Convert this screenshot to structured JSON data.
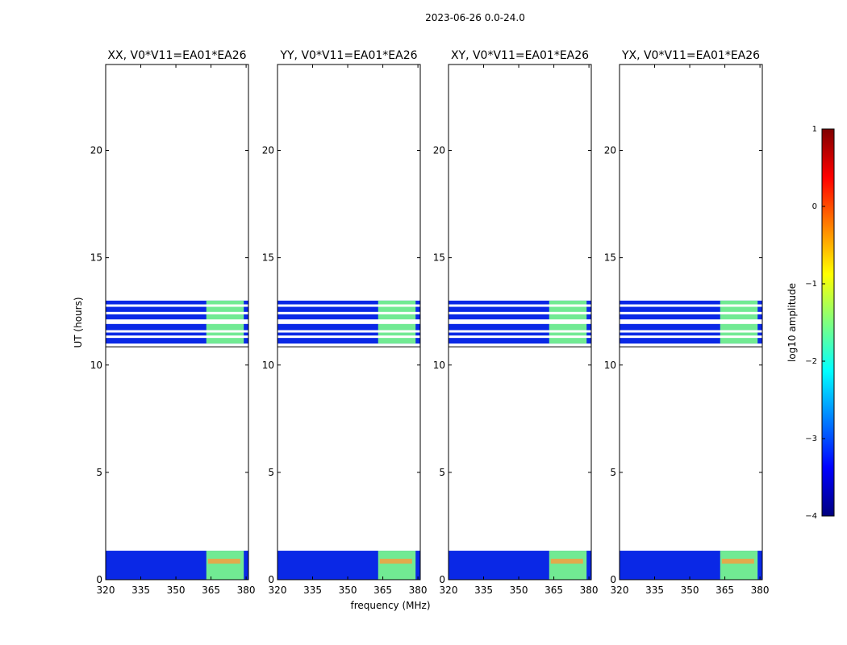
{
  "chart_data": {
    "type": "heatmap",
    "suptitle": "2023-06-26 0.0-24.0",
    "xlabel": "frequency (MHz)",
    "ylabel": "UT (hours)",
    "xlim": [
      320,
      381
    ],
    "ylim": [
      0,
      24
    ],
    "xticks": [
      320,
      335,
      350,
      365,
      380
    ],
    "xtick_labels": [
      "320",
      "335",
      "350",
      "365",
      "380"
    ],
    "yticks": [
      0,
      5,
      10,
      15,
      20
    ],
    "ytick_labels": [
      "0",
      "5",
      "10",
      "15",
      "20"
    ],
    "panels": [
      {
        "title": "XX, V0*V11=EA01*EA26"
      },
      {
        "title": "YY, V0*V11=EA01*EA26"
      },
      {
        "title": "XY, V0*V11=EA01*EA26"
      },
      {
        "title": "YX, V0*V11=EA01*EA26"
      }
    ],
    "data_ranges_hours": [
      {
        "start": 0.0,
        "end": 1.35
      },
      {
        "start": 11.0,
        "end": 13.0
      }
    ],
    "colorbar": {
      "label": "log10 amplitude",
      "min": -4,
      "max": 1,
      "ticks": [
        1,
        0,
        -1,
        -2,
        -3,
        -4
      ],
      "tick_labels": [
        "1",
        "0",
        "−1",
        "−2",
        "−3",
        "−4"
      ],
      "colormap": "jet",
      "colors": [
        "#00007f",
        "#0000ff",
        "#007fff",
        "#00ffff",
        "#7fff7f",
        "#ffff00",
        "#ff7f00",
        "#ff0000",
        "#7f0000"
      ]
    }
  }
}
